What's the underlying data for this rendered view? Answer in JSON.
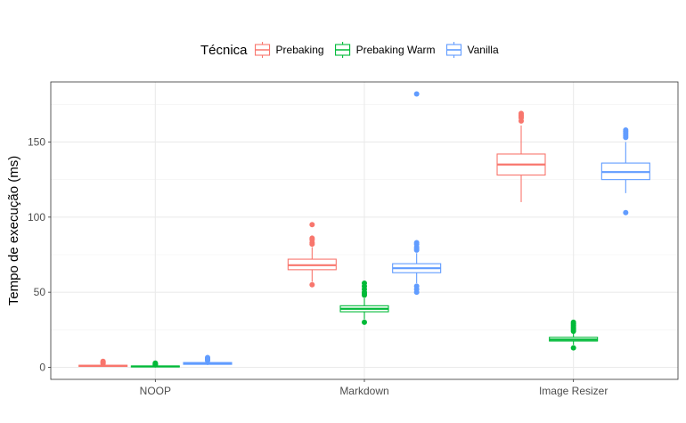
{
  "chart_data": {
    "type": "boxplot",
    "title": "",
    "xlabel": "",
    "ylabel": "Tempo de execução (ms)",
    "categories": [
      "NOOP",
      "Markdown",
      "Image Resizer"
    ],
    "ylim": [
      -8,
      190
    ],
    "yticks": [
      0,
      50,
      100,
      150
    ],
    "grid": true,
    "legend": {
      "title": "Técnica",
      "position": "top"
    },
    "series": [
      {
        "name": "Prebaking",
        "color": "#F8766D",
        "boxes": [
          {
            "min": 0.3,
            "q1": 0.6,
            "median": 1.0,
            "q3": 1.4,
            "max": 1.9,
            "outliers": [
              2.5,
              3.0,
              3.5,
              4.0
            ]
          },
          {
            "min": 57,
            "q1": 65,
            "median": 68,
            "q3": 72,
            "max": 80,
            "outliers": [
              55,
              82,
              83,
              85,
              86,
              95
            ]
          },
          {
            "min": 110,
            "q1": 128,
            "median": 135,
            "q3": 142,
            "max": 161,
            "outliers": [
              164,
              166,
              167,
              168,
              169
            ]
          }
        ]
      },
      {
        "name": "Prebaking Warm",
        "color": "#00BA38",
        "boxes": [
          {
            "min": 0.1,
            "q1": 0.3,
            "median": 0.6,
            "q3": 0.9,
            "max": 1.3,
            "outliers": [
              1.6,
              2.0,
              2.4,
              2.8
            ]
          },
          {
            "min": 32,
            "q1": 37,
            "median": 39,
            "q3": 41,
            "max": 46,
            "outliers": [
              30,
              48,
              49,
              50,
              52,
              54,
              56
            ]
          },
          {
            "min": 15,
            "q1": 17.5,
            "median": 18.5,
            "q3": 20,
            "max": 23,
            "outliers": [
              13,
              24,
              25,
              26,
              27,
              28,
              29,
              30
            ]
          }
        ]
      },
      {
        "name": "Vanilla",
        "color": "#619CFF",
        "boxes": [
          {
            "min": 1.5,
            "q1": 2.0,
            "median": 2.6,
            "q3": 3.2,
            "max": 4.0,
            "outliers": [
              4.5,
              5.0,
              5.5,
              6.0,
              6.5
            ]
          },
          {
            "min": 56,
            "q1": 63,
            "median": 66,
            "q3": 69,
            "max": 76,
            "outliers": [
              50,
              52,
              54,
              78,
              79,
              80,
              82,
              83,
              182
            ]
          },
          {
            "min": 116,
            "q1": 125,
            "median": 130,
            "q3": 136,
            "max": 150,
            "outliers": [
              103,
              153,
              154,
              155,
              156,
              157,
              158
            ]
          }
        ]
      }
    ]
  }
}
